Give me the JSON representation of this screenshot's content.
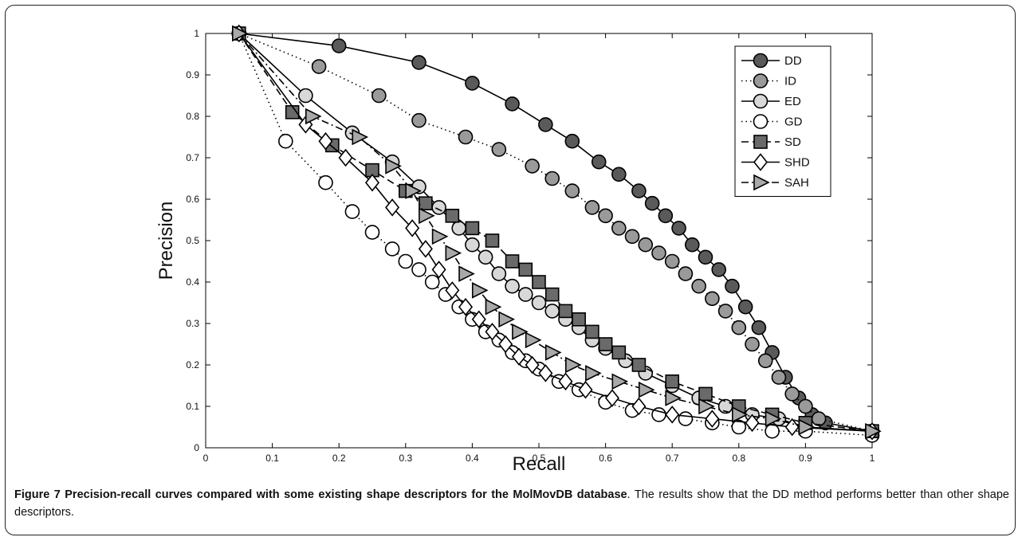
{
  "chart_data": {
    "type": "line",
    "xlabel": "Recall",
    "ylabel": "Precision",
    "xlim": [
      0,
      1
    ],
    "ylim": [
      0,
      1
    ],
    "xticks": [
      "0",
      "0.1",
      "0.2",
      "0.3",
      "0.4",
      "0.5",
      "0.6",
      "0.7",
      "0.8",
      "0.9",
      "1"
    ],
    "yticks": [
      "0",
      "0.1",
      "0.2",
      "0.3",
      "0.4",
      "0.5",
      "0.6",
      "0.7",
      "0.8",
      "0.9",
      "1"
    ],
    "grid": false,
    "legend_position": "top-right",
    "series": [
      {
        "name": "DD",
        "line": "solid",
        "marker": "circle",
        "fill": "#5a5a5a",
        "x": [
          0.05,
          0.2,
          0.32,
          0.4,
          0.46,
          0.51,
          0.55,
          0.59,
          0.62,
          0.65,
          0.67,
          0.69,
          0.71,
          0.73,
          0.75,
          0.77,
          0.79,
          0.81,
          0.83,
          0.85,
          0.87,
          0.89,
          0.91,
          0.93,
          1.0
        ],
        "y": [
          1.0,
          0.97,
          0.93,
          0.88,
          0.83,
          0.78,
          0.74,
          0.69,
          0.66,
          0.62,
          0.59,
          0.56,
          0.53,
          0.49,
          0.46,
          0.43,
          0.39,
          0.34,
          0.29,
          0.23,
          0.17,
          0.12,
          0.08,
          0.06,
          0.04
        ]
      },
      {
        "name": "ID",
        "line": "dotted",
        "marker": "circle",
        "fill": "#9a9a9a",
        "x": [
          0.05,
          0.17,
          0.26,
          0.32,
          0.39,
          0.44,
          0.49,
          0.52,
          0.55,
          0.58,
          0.6,
          0.62,
          0.64,
          0.66,
          0.68,
          0.7,
          0.72,
          0.74,
          0.76,
          0.78,
          0.8,
          0.82,
          0.84,
          0.86,
          0.88,
          0.9,
          0.92,
          1.0
        ],
        "y": [
          1.0,
          0.92,
          0.85,
          0.79,
          0.75,
          0.72,
          0.68,
          0.65,
          0.62,
          0.58,
          0.56,
          0.53,
          0.51,
          0.49,
          0.47,
          0.45,
          0.42,
          0.39,
          0.36,
          0.33,
          0.29,
          0.25,
          0.21,
          0.17,
          0.13,
          0.1,
          0.07,
          0.04
        ]
      },
      {
        "name": "ED",
        "line": "solid",
        "marker": "circle",
        "fill": "#d8d8d8",
        "x": [
          0.05,
          0.15,
          0.22,
          0.28,
          0.32,
          0.35,
          0.38,
          0.4,
          0.42,
          0.44,
          0.46,
          0.48,
          0.5,
          0.52,
          0.54,
          0.56,
          0.58,
          0.6,
          0.63,
          0.66,
          0.7,
          0.74,
          0.78,
          0.82,
          0.86,
          0.9,
          1.0
        ],
        "y": [
          1.0,
          0.85,
          0.76,
          0.69,
          0.63,
          0.58,
          0.53,
          0.49,
          0.46,
          0.42,
          0.39,
          0.37,
          0.35,
          0.33,
          0.31,
          0.29,
          0.26,
          0.24,
          0.21,
          0.18,
          0.15,
          0.12,
          0.1,
          0.08,
          0.07,
          0.05,
          0.04
        ]
      },
      {
        "name": "GD",
        "line": "dotted",
        "marker": "circle",
        "fill": "#ffffff",
        "x": [
          0.05,
          0.12,
          0.18,
          0.22,
          0.25,
          0.28,
          0.3,
          0.32,
          0.34,
          0.36,
          0.38,
          0.4,
          0.42,
          0.44,
          0.46,
          0.48,
          0.5,
          0.53,
          0.56,
          0.6,
          0.64,
          0.68,
          0.72,
          0.76,
          0.8,
          0.85,
          0.9,
          1.0
        ],
        "y": [
          1.0,
          0.74,
          0.64,
          0.57,
          0.52,
          0.48,
          0.45,
          0.43,
          0.4,
          0.37,
          0.34,
          0.31,
          0.28,
          0.26,
          0.23,
          0.21,
          0.19,
          0.16,
          0.14,
          0.11,
          0.09,
          0.08,
          0.07,
          0.06,
          0.05,
          0.04,
          0.04,
          0.03
        ]
      },
      {
        "name": "SD",
        "line": "dashed",
        "marker": "square",
        "fill": "#6a6a6a",
        "x": [
          0.05,
          0.13,
          0.19,
          0.25,
          0.3,
          0.33,
          0.37,
          0.4,
          0.43,
          0.46,
          0.48,
          0.5,
          0.52,
          0.54,
          0.56,
          0.58,
          0.6,
          0.62,
          0.65,
          0.7,
          0.75,
          0.8,
          0.85,
          0.9,
          1.0
        ],
        "y": [
          1.0,
          0.81,
          0.73,
          0.67,
          0.62,
          0.59,
          0.56,
          0.53,
          0.5,
          0.45,
          0.43,
          0.4,
          0.37,
          0.33,
          0.31,
          0.28,
          0.25,
          0.23,
          0.2,
          0.16,
          0.13,
          0.1,
          0.08,
          0.06,
          0.04
        ]
      },
      {
        "name": "SHD",
        "line": "solid",
        "marker": "diamond",
        "fill": "#ffffff",
        "x": [
          0.05,
          0.15,
          0.18,
          0.21,
          0.25,
          0.28,
          0.31,
          0.33,
          0.35,
          0.37,
          0.39,
          0.41,
          0.43,
          0.45,
          0.47,
          0.49,
          0.51,
          0.54,
          0.57,
          0.61,
          0.65,
          0.7,
          0.76,
          0.82,
          0.88,
          1.0
        ],
        "y": [
          1.0,
          0.78,
          0.74,
          0.7,
          0.64,
          0.58,
          0.53,
          0.48,
          0.43,
          0.38,
          0.34,
          0.31,
          0.28,
          0.25,
          0.22,
          0.2,
          0.18,
          0.16,
          0.14,
          0.12,
          0.1,
          0.08,
          0.07,
          0.06,
          0.05,
          0.04
        ]
      },
      {
        "name": "SAH",
        "line": "dashdot",
        "marker": "triangle",
        "fill": "#a8a8a8",
        "x": [
          0.05,
          0.16,
          0.23,
          0.28,
          0.31,
          0.33,
          0.35,
          0.37,
          0.39,
          0.41,
          0.43,
          0.45,
          0.47,
          0.49,
          0.52,
          0.55,
          0.58,
          0.62,
          0.66,
          0.7,
          0.75,
          0.8,
          0.85,
          0.9,
          1.0
        ],
        "y": [
          1.0,
          0.8,
          0.75,
          0.68,
          0.62,
          0.56,
          0.51,
          0.47,
          0.42,
          0.38,
          0.34,
          0.31,
          0.28,
          0.26,
          0.23,
          0.2,
          0.18,
          0.16,
          0.14,
          0.12,
          0.1,
          0.08,
          0.07,
          0.05,
          0.04
        ]
      }
    ]
  },
  "caption": {
    "title": "Figure 7 Precision-recall curves compared with some existing shape descriptors for the MolMovDB database",
    "body": ". The results show that the DD method performs better than other shape descriptors."
  }
}
